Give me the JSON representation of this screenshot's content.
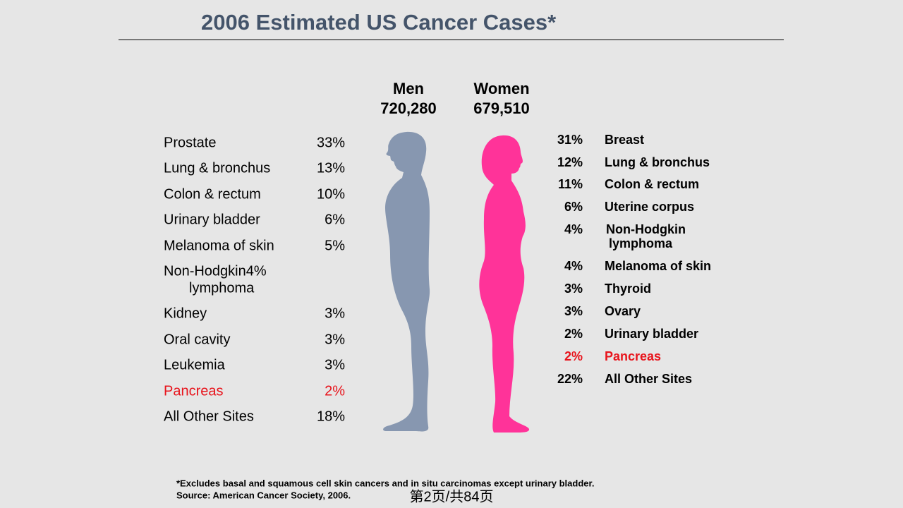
{
  "header": {
    "title": "2006 Estimated US Cancer Cases*"
  },
  "men": {
    "label": "Men",
    "total": "720,280",
    "rows": [
      {
        "site": "Prostate",
        "pct": "33%"
      },
      {
        "site": "Lung & bronchus",
        "pct": "13%"
      },
      {
        "site": "Colon & rectum",
        "pct": "10%"
      },
      {
        "site": "Urinary bladder",
        "pct": "6%"
      },
      {
        "site": "Melanoma of skin",
        "pct": "5%"
      },
      {
        "site": "Non-Hodgkin",
        "site_line2": "lymphoma",
        "pct": "4%"
      },
      {
        "site": "Kidney",
        "pct": "3%"
      },
      {
        "site": "Oral cavity",
        "pct": "3%"
      },
      {
        "site": "Leukemia",
        "pct": "3%"
      },
      {
        "site": "Pancreas",
        "pct": "2%",
        "highlight": true
      },
      {
        "site": "All Other Sites",
        "pct": "18%"
      }
    ]
  },
  "women": {
    "label": "Women",
    "total": "679,510",
    "rows": [
      {
        "site": "Breast",
        "pct": "31%"
      },
      {
        "site": "Lung & bronchus",
        "pct": "12%"
      },
      {
        "site": "Colon & rectum",
        "pct": "11%"
      },
      {
        "site": "Uterine corpus",
        "pct": "6%"
      },
      {
        "site": "Non-Hodgkin",
        "site_line2": "lymphoma",
        "pct": "4%"
      },
      {
        "site": "Melanoma of skin",
        "pct": "4%"
      },
      {
        "site": "Thyroid",
        "pct": "3%"
      },
      {
        "site": "Ovary",
        "pct": "3%"
      },
      {
        "site": "Urinary bladder",
        "pct": "2%"
      },
      {
        "site": "Pancreas",
        "pct": "2%",
        "highlight": true
      },
      {
        "site": "All Other Sites",
        "pct": "22%"
      }
    ]
  },
  "footnote": {
    "line1": "*Excludes basal and squamous cell skin cancers and in situ carcinomas except urinary bladder.",
    "line2": "Source: American Cancer Society, 2006."
  },
  "page_label": "第2页/共84页"
}
